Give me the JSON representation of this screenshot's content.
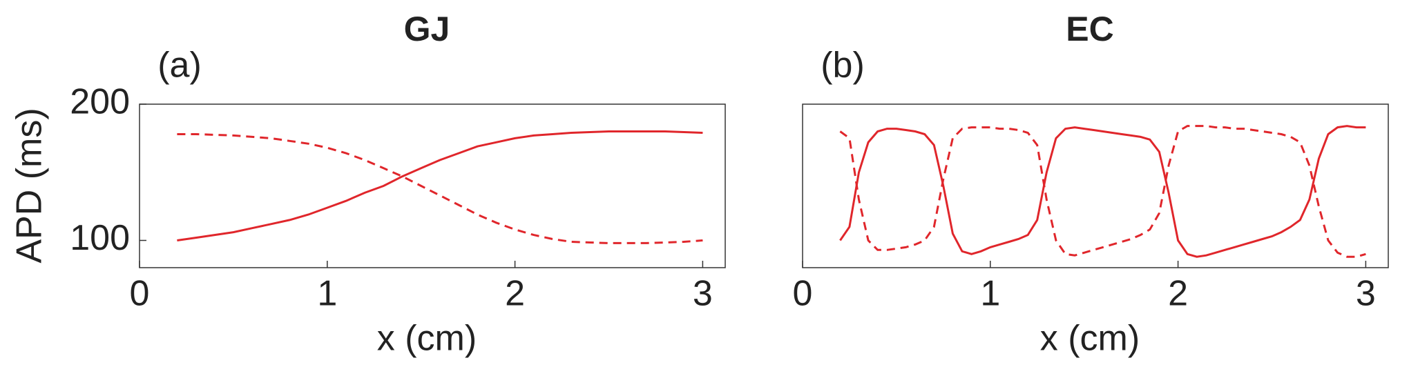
{
  "chart_data": [
    {
      "type": "line",
      "title": "GJ",
      "label": "(a)",
      "xlabel": "x (cm)",
      "ylabel": "APD (ms)",
      "xlim": [
        0,
        3.12
      ],
      "ylim": [
        80,
        200
      ],
      "xticks": [
        0,
        1,
        2,
        3
      ],
      "yticks": [
        100,
        200
      ],
      "x": [
        0.2,
        0.3,
        0.4,
        0.5,
        0.6,
        0.7,
        0.8,
        0.9,
        1.0,
        1.1,
        1.2,
        1.3,
        1.4,
        1.5,
        1.6,
        1.7,
        1.8,
        1.9,
        2.0,
        2.1,
        2.2,
        2.3,
        2.4,
        2.5,
        2.6,
        2.7,
        2.8,
        2.9,
        3.0
      ],
      "series": [
        {
          "color": "#e0262b",
          "linestyle": "solid",
          "values": [
            100,
            102,
            104,
            106,
            109,
            112,
            115,
            119,
            124,
            129,
            135,
            140,
            147,
            153,
            159,
            164,
            169,
            172,
            175,
            177,
            178,
            179,
            179.5,
            180,
            180,
            180,
            180,
            179.5,
            179
          ]
        },
        {
          "color": "#e0262b",
          "linestyle": "dashed",
          "values": [
            178,
            178,
            177.5,
            177,
            176,
            175,
            173,
            171,
            168,
            164,
            159,
            153,
            147,
            140,
            133,
            126,
            119,
            113,
            108,
            104,
            101,
            99,
            98.5,
            98,
            98,
            98,
            98.5,
            99,
            100
          ]
        }
      ]
    },
    {
      "type": "line",
      "title": "EC",
      "label": "(b)",
      "xlabel": "x (cm)",
      "xlim": [
        0,
        3.12
      ],
      "ylim": [
        80,
        200
      ],
      "xticks": [
        0,
        1,
        2,
        3
      ],
      "x": [
        0.2,
        0.25,
        0.3,
        0.35,
        0.4,
        0.45,
        0.5,
        0.55,
        0.6,
        0.65,
        0.7,
        0.75,
        0.8,
        0.85,
        0.9,
        0.95,
        1.0,
        1.05,
        1.1,
        1.15,
        1.2,
        1.25,
        1.3,
        1.35,
        1.4,
        1.45,
        1.5,
        1.55,
        1.6,
        1.65,
        1.7,
        1.75,
        1.8,
        1.85,
        1.9,
        1.95,
        2.0,
        2.05,
        2.1,
        2.15,
        2.2,
        2.25,
        2.3,
        2.35,
        2.4,
        2.45,
        2.5,
        2.55,
        2.6,
        2.65,
        2.7,
        2.75,
        2.8,
        2.85,
        2.9,
        2.95,
        3.0
      ],
      "series": [
        {
          "color": "#e0262b",
          "linestyle": "solid",
          "values": [
            100,
            110,
            150,
            172,
            180,
            182,
            182,
            181,
            180,
            178,
            170,
            140,
            105,
            92,
            90,
            92,
            95,
            97,
            99,
            101,
            104,
            115,
            150,
            175,
            182,
            183,
            182,
            181,
            180,
            179,
            178,
            177,
            176,
            174,
            165,
            135,
            100,
            90,
            88,
            89,
            91,
            93,
            95,
            97,
            99,
            101,
            103,
            106,
            110,
            115,
            130,
            160,
            178,
            183,
            184,
            183,
            183
          ]
        },
        {
          "color": "#e0262b",
          "linestyle": "dashed",
          "values": [
            180,
            175,
            130,
            100,
            93,
            93,
            94,
            95,
            97,
            100,
            110,
            145,
            175,
            182,
            183,
            183,
            183,
            182,
            182,
            181,
            179,
            170,
            130,
            100,
            90,
            89,
            91,
            93,
            95,
            97,
            99,
            101,
            104,
            108,
            120,
            155,
            180,
            184,
            184,
            184,
            183,
            183,
            182,
            182,
            181,
            180,
            179,
            178,
            176,
            172,
            155,
            125,
            100,
            91,
            88,
            88,
            90
          ]
        }
      ]
    }
  ]
}
